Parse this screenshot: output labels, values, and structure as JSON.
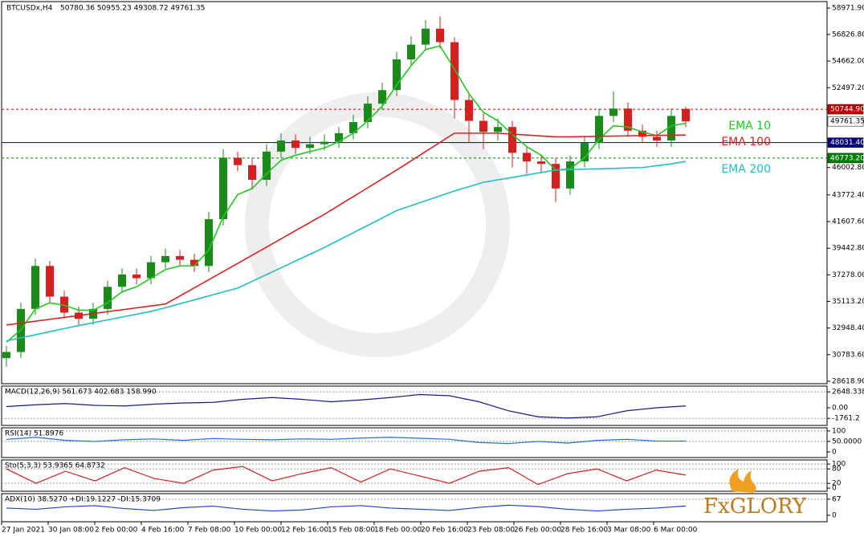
{
  "chart_data": [
    {
      "type": "candlestick",
      "title": "BTCUSDx,H4",
      "subtitle": "50780.36 50955.23 49308.72 49761.35",
      "ylim": [
        28420,
        59500
      ],
      "yticks": [
        {
          "value": 58971.9,
          "label": "58971.90"
        },
        {
          "value": 56826.8,
          "label": "56826.80"
        },
        {
          "value": 54662,
          "label": "54662.00"
        },
        {
          "value": 52497.2,
          "label": "52497.20"
        },
        {
          "value": 46002.8,
          "label": "46002.80"
        },
        {
          "value": 43772.4,
          "label": "43772.40"
        },
        {
          "value": 41607.6,
          "label": "41607.60"
        },
        {
          "value": 39442.8,
          "label": "39442.80"
        },
        {
          "value": 37278,
          "label": "37278.00"
        },
        {
          "value": 35113.2,
          "label": "35113.20"
        },
        {
          "value": 32948.4,
          "label": "32948.40"
        },
        {
          "value": 30783.6,
          "label": "30783.60"
        },
        {
          "value": 28618.9,
          "label": "28618.90"
        }
      ],
      "x_labels": [
        "27 Jan 2021",
        "30 Jan 08:00",
        "2 Feb 00:00",
        "4 Feb 16:00",
        "7 Feb 08:00",
        "10 Feb 00:00",
        "12 Feb 16:00",
        "15 Feb 08:00",
        "18 Feb 00:00",
        "20 Feb 16:00",
        "23 Feb 08:00",
        "26 Feb 00:00",
        "28 Feb 16:00",
        "3 Mar 08:00",
        "6 Mar 00:00"
      ],
      "up_color": "#1a8a1a",
      "down_color": "#d62020",
      "open": [
        30500,
        31000,
        34500,
        38000,
        35500,
        34200,
        33700,
        34500,
        36300,
        37300,
        37000,
        38300,
        38800,
        38500,
        38000,
        41800,
        46800,
        46200,
        45000,
        47300,
        48200,
        47600,
        47900,
        48100,
        48800,
        49700,
        51200,
        52300,
        54800,
        56000,
        57300,
        56200,
        51500,
        49800,
        48900,
        49300,
        47200,
        46500,
        46300,
        44300,
        46500,
        48000,
        50200,
        50800,
        49000,
        48500,
        48200,
        50780.36
      ],
      "high": [
        31500,
        35000,
        38600,
        38400,
        36000,
        34700,
        35000,
        36800,
        37800,
        37800,
        38800,
        39400,
        39300,
        39000,
        42400,
        47500,
        47300,
        46800,
        47900,
        48800,
        48700,
        48500,
        48700,
        49300,
        50300,
        51800,
        52900,
        55400,
        56700,
        58000,
        58300,
        56600,
        52100,
        50400,
        50000,
        49800,
        47700,
        47000,
        46800,
        47000,
        48500,
        50800,
        52200,
        51300,
        49500,
        49000,
        50800,
        50955.23
      ],
      "low": [
        29800,
        30500,
        34000,
        35000,
        33700,
        33200,
        33200,
        34000,
        35800,
        36500,
        36500,
        37800,
        38000,
        37500,
        37500,
        41300,
        45700,
        44200,
        44500,
        46800,
        47100,
        47100,
        47400,
        47600,
        48300,
        49200,
        50700,
        51800,
        54300,
        55500,
        55700,
        50000,
        48000,
        47500,
        48200,
        46000,
        45500,
        45500,
        43200,
        43800,
        46000,
        47500,
        49700,
        48500,
        48000,
        47700,
        47700,
        49308.72
      ],
      "close": [
        31000,
        34500,
        38000,
        35500,
        34200,
        33700,
        34500,
        36300,
        37300,
        37000,
        38300,
        38800,
        38500,
        38000,
        41800,
        46800,
        46200,
        45000,
        47300,
        48200,
        47600,
        47900,
        48100,
        48800,
        49700,
        51200,
        52300,
        54800,
        56000,
        57300,
        56200,
        51500,
        49800,
        48900,
        49300,
        47200,
        46500,
        46300,
        44300,
        46500,
        48000,
        50200,
        50800,
        49000,
        48500,
        48200,
        50200,
        49761.35
      ],
      "series": [
        {
          "name": "EMA 10",
          "color": "#22c822",
          "values": [
            31800,
            32800,
            34500,
            35000,
            34800,
            34400,
            34400,
            35000,
            35900,
            36300,
            37000,
            37700,
            38000,
            38000,
            39300,
            42000,
            43800,
            44300,
            45500,
            46600,
            47000,
            47300,
            47600,
            48100,
            48800,
            49800,
            51000,
            52700,
            54300,
            55600,
            55900,
            54000,
            52000,
            50500,
            49800,
            48700,
            47700,
            47000,
            45800,
            45900,
            46800,
            48300,
            49400,
            49300,
            48900,
            48600,
            49400,
            49600
          ]
        },
        {
          "name": "EMA 100",
          "color": "#e02020",
          "values": [
            33200,
            33350,
            33500,
            33660,
            33810,
            33970,
            34120,
            34280,
            34430,
            34590,
            34740,
            34900,
            35560,
            36220,
            36880,
            37540,
            38200,
            38870,
            39530,
            40200,
            40870,
            41530,
            42200,
            42920,
            43640,
            44360,
            45080,
            45800,
            46550,
            47300,
            48050,
            48800,
            48800,
            48800,
            48800,
            48720,
            48650,
            48570,
            48500,
            48500,
            48520,
            48540,
            48560,
            48580,
            48600,
            48620,
            48630,
            48650
          ]
        },
        {
          "name": "EMA 200",
          "color": "#20c0c0",
          "values": [
            31900,
            32150,
            32400,
            32650,
            32900,
            33150,
            33380,
            33610,
            33840,
            34070,
            34300,
            34600,
            34920,
            35240,
            35560,
            35880,
            36200,
            36750,
            37300,
            37850,
            38400,
            38950,
            39500,
            40100,
            40700,
            41300,
            41900,
            42500,
            42900,
            43300,
            43700,
            44100,
            44450,
            44800,
            45000,
            45200,
            45400,
            45600,
            45800,
            45830,
            45870,
            45900,
            45930,
            45970,
            46000,
            46150,
            46300,
            46500
          ]
        }
      ],
      "price_lines": [
        {
          "value": 50744.9,
          "label": "50744.90",
          "color": "#c00000",
          "line": "dashed"
        },
        {
          "value": 49761.35,
          "label": "49761.35",
          "color": "#ffffff",
          "line": "none"
        },
        {
          "value": 48031.4,
          "label": "48031.40",
          "color": "#000080",
          "line": "solid"
        },
        {
          "value": 46773.2,
          "label": "46773.20",
          "color": "#008000",
          "line": "dashed"
        }
      ],
      "logo": "FxGLORY"
    },
    {
      "type": "line",
      "title": "MACD(12,26,9) 561.673 402.683 158.990",
      "ylim": [
        -2930,
        3600
      ],
      "yticks": [
        2648.338,
        {
          "value": 0,
          "label": "0.00"
        },
        -1761.2
      ],
      "color": "#1a1a8a",
      "values": [
        200,
        500,
        700,
        400,
        300,
        600,
        800,
        900,
        1400,
        1700,
        1400,
        1000,
        1300,
        1700,
        2200,
        2000,
        1000,
        -500,
        -1500,
        -1700,
        -1500,
        -500,
        0,
        300
      ]
    },
    {
      "type": "line",
      "title": "RSI(14) 51.8976",
      "ylim": [
        -27,
        115
      ],
      "yticks": [
        100,
        {
          "value": 50,
          "label": "50.0000"
        },
        0
      ],
      "color": "#1e6fd0",
      "values": [
        60,
        70,
        55,
        50,
        58,
        62,
        55,
        64,
        60,
        58,
        62,
        60,
        66,
        70,
        65,
        60,
        45,
        40,
        50,
        42,
        55,
        60,
        52,
        52
      ]
    },
    {
      "type": "line",
      "title": "Sto(5,3,3) 53.9365 64.8732",
      "ylim": [
        -13,
        117
      ],
      "yticks": [
        100,
        80,
        20,
        0
      ],
      "color": "#d62020",
      "values": [
        80,
        20,
        70,
        30,
        85,
        40,
        20,
        75,
        90,
        30,
        60,
        85,
        25,
        80,
        50,
        20,
        70,
        85,
        15,
        60,
        80,
        30,
        75,
        54
      ]
    },
    {
      "type": "line",
      "title": "ADX(10) 38.5270 +DI:19.1227 -DI:15.3709",
      "ylim": [
        -27,
        90
      ],
      "yticks": [
        67,
        0
      ],
      "color": "#2040d0",
      "values": [
        30,
        25,
        35,
        40,
        28,
        20,
        32,
        38,
        25,
        18,
        22,
        35,
        40,
        30,
        25,
        20,
        33,
        42,
        36,
        25,
        18,
        25,
        30,
        38.527
      ]
    }
  ]
}
